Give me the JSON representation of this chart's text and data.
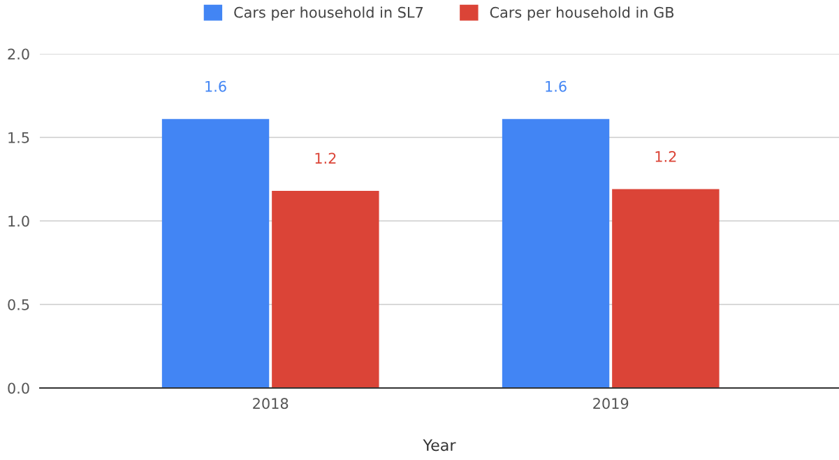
{
  "chart_data": {
    "type": "bar",
    "xlabel": "Year",
    "categories": [
      "2018",
      "2019"
    ],
    "series": [
      {
        "name": "Cars per household in SL7",
        "color": "#4285f4",
        "values": [
          1.61,
          1.61
        ],
        "value_labels": [
          "1.6",
          "1.6"
        ]
      },
      {
        "name": "Cars per household in GB",
        "color": "#db4437",
        "values": [
          1.18,
          1.19
        ],
        "value_labels": [
          "1.2",
          "1.2"
        ]
      }
    ],
    "ylim": [
      0,
      2
    ],
    "yticks": [
      {
        "value": 0,
        "label": "0.0"
      },
      {
        "value": 0.5,
        "label": "0.5"
      },
      {
        "value": 1,
        "label": "1.0"
      },
      {
        "value": 1.5,
        "label": "1.5"
      },
      {
        "value": 2,
        "label": "2.0"
      }
    ],
    "grid": "y",
    "legend": "top"
  }
}
